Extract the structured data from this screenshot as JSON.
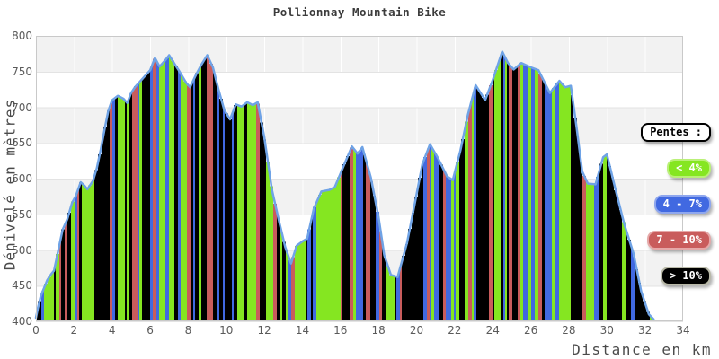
{
  "title": "Pollionnay Mountain Bike",
  "legend": {
    "title": "Pentes :",
    "items": [
      {
        "label": "< 4%",
        "color": "#85e621",
        "border": "#baf078",
        "slope_range_pct": "less than 4"
      },
      {
        "label": "4 - 7%",
        "color": "#4169e1",
        "border": "#8fa7ee",
        "slope_range_pct": "4 to 7"
      },
      {
        "label": "7 - 10%",
        "color": "#c95c5c",
        "border": "#e5a8a8",
        "slope_range_pct": "7 to 10"
      },
      {
        "label": "> 10%",
        "color": "#000000",
        "border": "#b9b9a8",
        "slope_range_pct": "more than 10"
      }
    ]
  },
  "chart_data": {
    "type": "area",
    "title": "Pollionnay Mountain Bike",
    "xlabel": "Distance en km",
    "ylabel": "Dénivelé en mètres",
    "xlim": [
      0,
      34
    ],
    "ylim": [
      400,
      800
    ],
    "x_ticks": [
      0,
      2,
      4,
      6,
      8,
      10,
      12,
      14,
      16,
      18,
      20,
      22,
      24,
      26,
      28,
      30,
      32,
      34
    ],
    "y_ticks": [
      800,
      750,
      700,
      650,
      600,
      550,
      500,
      450,
      400
    ],
    "grid": "alternating horizontal bands, white vertical gridlines every 2 km",
    "legend_position": "right",
    "line_color": "#6fa3e6",
    "series_note": "elevation profile filled with vertical bars colored by local slope class",
    "x_km": [
      0,
      0.1,
      0.25,
      0.4,
      0.6,
      0.8,
      0.95,
      1.1,
      1.4,
      1.65,
      1.9,
      2.1,
      2.35,
      2.55,
      2.7,
      3.0,
      3.2,
      3.4,
      3.6,
      3.8,
      4.0,
      4.3,
      4.6,
      4.8,
      5.0,
      5.2,
      5.6,
      6.0,
      6.25,
      6.5,
      6.8,
      7.0,
      7.3,
      7.5,
      7.9,
      8.1,
      8.4,
      8.7,
      9.0,
      9.3,
      9.6,
      9.9,
      10.2,
      10.5,
      10.8,
      11.1,
      11.4,
      11.65,
      12.0,
      12.4,
      12.8,
      13.1,
      13.4,
      13.7,
      14.0,
      14.25,
      14.6,
      15.0,
      15.4,
      15.7,
      16.2,
      16.6,
      16.9,
      17.15,
      17.6,
      18.0,
      18.3,
      18.65,
      19.0,
      19.5,
      20.0,
      20.3,
      20.7,
      21.1,
      21.6,
      21.9,
      22.3,
      22.7,
      23.1,
      23.6,
      24.0,
      24.5,
      24.8,
      25.1,
      25.5,
      26.0,
      26.4,
      27.0,
      27.5,
      27.8,
      28.1,
      28.4,
      28.7,
      29.0,
      29.4,
      29.8,
      30.0,
      30.4,
      30.9,
      31.4,
      31.8,
      32.2,
      32.45
    ],
    "elevation_m": [
      405,
      418,
      435,
      445,
      458,
      466,
      471,
      490,
      528,
      543,
      566,
      576,
      595,
      590,
      585,
      597,
      615,
      640,
      668,
      695,
      710,
      716,
      712,
      706,
      720,
      728,
      740,
      752,
      769,
      757,
      766,
      773,
      760,
      752,
      734,
      728,
      745,
      760,
      773,
      756,
      724,
      696,
      683,
      704,
      701,
      707,
      703,
      707,
      658,
      584,
      537,
      504,
      481,
      506,
      512,
      516,
      558,
      582,
      584,
      588,
      620,
      645,
      635,
      644,
      601,
      546,
      493,
      465,
      462,
      510,
      578,
      620,
      648,
      630,
      603,
      598,
      639,
      690,
      731,
      710,
      738,
      778,
      762,
      753,
      762,
      756,
      752,
      720,
      737,
      728,
      730,
      673,
      610,
      593,
      592,
      630,
      634,
      590,
      537,
      495,
      442,
      410,
      403
    ]
  }
}
